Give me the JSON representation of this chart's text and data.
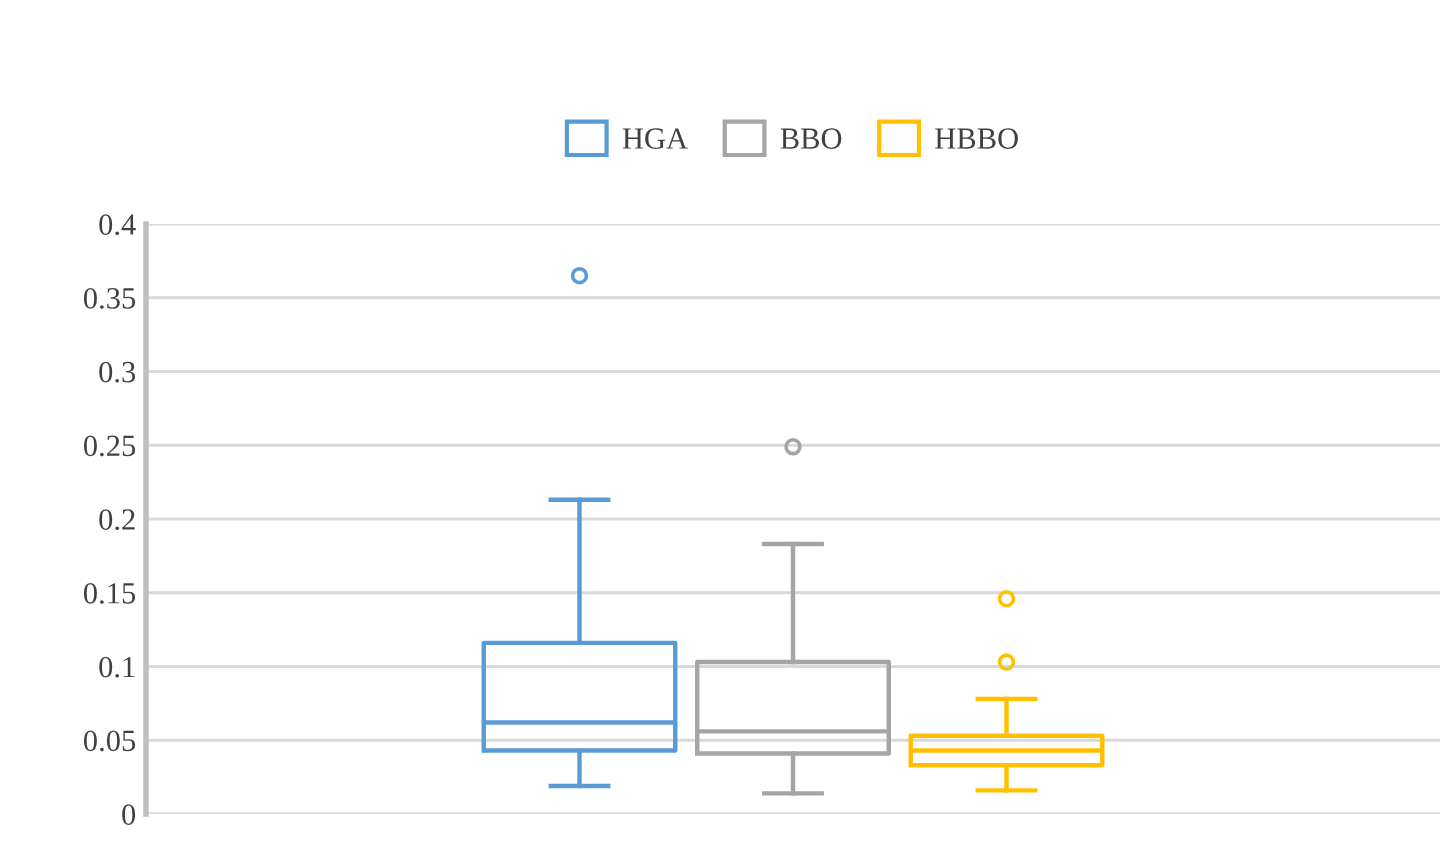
{
  "chart_data": {
    "type": "box",
    "categories": [
      null
    ],
    "series": [
      {
        "name": "HGA",
        "color": "#5b9bd5",
        "boxes": [
          {
            "low": 0.019,
            "q1": 0.043,
            "median": 0.062,
            "q3": 0.116,
            "high": 0.213,
            "outliers": [
              0.365
            ]
          }
        ]
      },
      {
        "name": "BBO",
        "color": "#a5a5a5",
        "boxes": [
          {
            "low": 0.014,
            "q1": 0.041,
            "median": 0.056,
            "q3": 0.103,
            "high": 0.183,
            "outliers": [
              0.249
            ]
          }
        ]
      },
      {
        "name": "HBBO",
        "color": "#ffc000",
        "boxes": [
          {
            "low": 0.016,
            "q1": 0.033,
            "median": 0.043,
            "q3": 0.053,
            "high": 0.078,
            "outliers": [
              0.103,
              0.146
            ]
          }
        ]
      }
    ],
    "ylim": [
      0,
      0.4
    ],
    "yticks": [
      0,
      0.05,
      0.1,
      0.15,
      0.2,
      0.25,
      0.3,
      0.35,
      0.4
    ],
    "grid": "y",
    "legend": "top"
  }
}
